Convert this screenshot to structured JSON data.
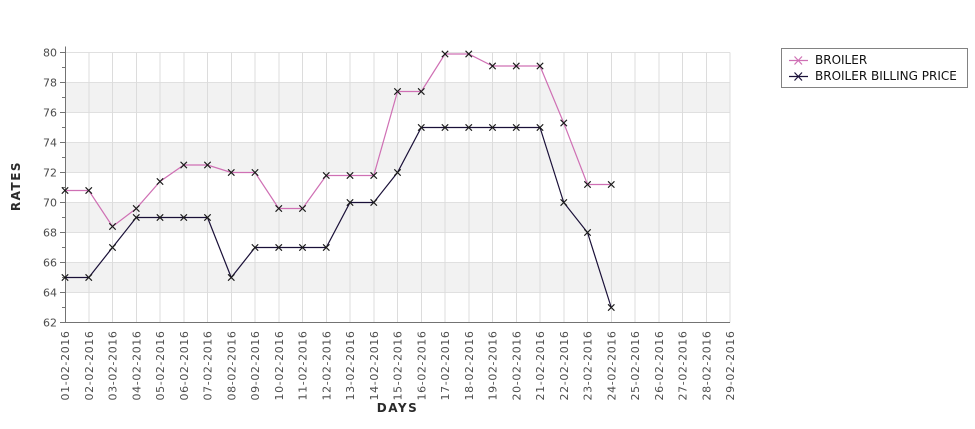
{
  "chart_data": {
    "type": "line",
    "title": "",
    "xlabel": "DAYS",
    "ylabel": "RATES",
    "x_categories": [
      "01-02-2016",
      "02-02-2016",
      "03-02-2016",
      "04-02-2016",
      "05-02-2016",
      "06-02-2016",
      "07-02-2016",
      "08-02-2016",
      "09-02-2016",
      "10-02-2016",
      "11-02-2016",
      "12-02-2016",
      "13-02-2016",
      "14-02-2016",
      "15-02-2016",
      "16-02-2016",
      "17-02-2016",
      "18-02-2016",
      "19-02-2016",
      "20-02-2016",
      "21-02-2016",
      "22-02-2016",
      "23-02-2016",
      "24-02-2016",
      "25-02-2016",
      "26-02-2016",
      "27-02-2016",
      "28-02-2016",
      "29-02-2016"
    ],
    "ylim": [
      62,
      80
    ],
    "ytick_step": 2,
    "ytick_labels": [
      "62",
      "64",
      "66",
      "68",
      "70",
      "72",
      "74",
      "76",
      "78",
      "80"
    ],
    "grid": true,
    "legend_position": "top-right",
    "band_colors": [
      "#ffffff",
      "#f2f2f2"
    ],
    "marker": "x",
    "marker_color": "#1a1a1a",
    "series": [
      {
        "name": "BROILER",
        "color": "#cf70b4",
        "values": [
          70.8,
          70.8,
          68.4,
          69.6,
          71.4,
          72.5,
          72.5,
          72.0,
          72.0,
          69.6,
          69.6,
          71.8,
          71.8,
          71.8,
          77.4,
          77.4,
          79.9,
          79.9,
          79.1,
          79.1,
          79.1,
          75.3,
          71.2,
          71.2
        ]
      },
      {
        "name": "BROILER BILLING PRICE",
        "color": "#1a1038",
        "values": [
          65,
          65,
          67,
          69,
          69,
          69,
          69,
          65,
          67,
          67,
          67,
          67,
          70,
          70,
          72,
          75,
          75,
          75,
          75,
          75,
          75,
          70,
          68,
          63
        ]
      }
    ]
  }
}
